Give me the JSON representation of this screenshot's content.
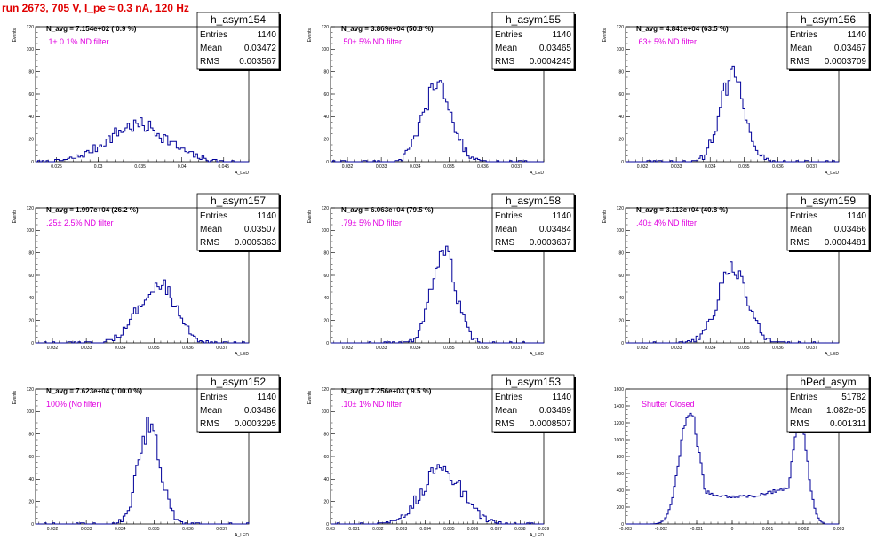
{
  "page": {
    "title": "run 2673,   705 V, I_pe ≈ 0.3 nA, 120 Hz"
  },
  "chart_data": [
    {
      "type": "bar",
      "name": "h_asym154",
      "navg": "N_avg = 7.154e+02 ( 0.9 %)",
      "filter_label": ".1± 0.1% ND filter",
      "stats": [
        [
          "Entries",
          "1140"
        ],
        [
          "Mean",
          "0.03472"
        ],
        [
          "RMS",
          "0.003567"
        ]
      ],
      "xlabel": "A_LED",
      "ylabel": "Events",
      "xlim": [
        0.0225,
        0.048
      ],
      "ylim": [
        0,
        120
      ],
      "xticks": [
        0.025,
        0.03,
        0.035,
        0.04,
        0.045
      ],
      "xtick_labels": [
        "0.025",
        "0.03",
        "0.035",
        "0.04",
        "0.045"
      ],
      "yticks": [
        0,
        20,
        40,
        60,
        80,
        100,
        120
      ],
      "ytick_labels": [
        "0",
        "20",
        "40",
        "60",
        "80",
        "100",
        "120"
      ],
      "dist": {
        "mean": 0.03472,
        "rms": 0.003567,
        "entries": 1140,
        "shape": "gauss"
      }
    },
    {
      "type": "bar",
      "name": "h_asym155",
      "navg": "N_avg = 3.869e+04 (50.8 %)",
      "filter_label": ".50± 5% ND filter",
      "stats": [
        [
          "Entries",
          "1140"
        ],
        [
          "Mean",
          "0.03465"
        ],
        [
          "RMS",
          "0.0004245"
        ]
      ],
      "xlabel": "A_LED",
      "ylabel": "Events",
      "xlim": [
        0.0315,
        0.0378
      ],
      "ylim": [
        0,
        120
      ],
      "xticks": [
        0.032,
        0.033,
        0.034,
        0.035,
        0.036,
        0.037
      ],
      "xtick_labels": [
        "0.032",
        "0.033",
        "0.034",
        "0.035",
        "0.036",
        "0.037"
      ],
      "yticks": [
        0,
        20,
        40,
        60,
        80,
        100,
        120
      ],
      "ytick_labels": [
        "0",
        "20",
        "40",
        "60",
        "80",
        "100",
        "120"
      ],
      "dist": {
        "mean": 0.03465,
        "rms": 0.0004245,
        "entries": 1140,
        "shape": "gauss"
      }
    },
    {
      "type": "bar",
      "name": "h_asym156",
      "navg": "N_avg = 4.841e+04 (63.5 %)",
      "filter_label": ".63± 5% ND filter",
      "stats": [
        [
          "Entries",
          "1140"
        ],
        [
          "Mean",
          "0.03467"
        ],
        [
          "RMS",
          "0.0003709"
        ]
      ],
      "xlabel": "A_LED",
      "ylabel": "Events",
      "xlim": [
        0.0315,
        0.0378
      ],
      "ylim": [
        0,
        120
      ],
      "xticks": [
        0.032,
        0.033,
        0.034,
        0.035,
        0.036,
        0.037
      ],
      "xtick_labels": [
        "0.032",
        "0.033",
        "0.034",
        "0.035",
        "0.036",
        "0.037"
      ],
      "yticks": [
        0,
        20,
        40,
        60,
        80,
        100,
        120
      ],
      "ytick_labels": [
        "0",
        "20",
        "40",
        "60",
        "80",
        "100",
        "120"
      ],
      "dist": {
        "mean": 0.03467,
        "rms": 0.0003709,
        "entries": 1140,
        "shape": "gauss"
      }
    },
    {
      "type": "bar",
      "name": "h_asym157",
      "navg": "N_avg = 1.997e+04 (26.2 %)",
      "filter_label": ".25± 2.5% ND filter",
      "stats": [
        [
          "Entries",
          "1140"
        ],
        [
          "Mean",
          "0.03507"
        ],
        [
          "RMS",
          "0.0005363"
        ]
      ],
      "xlabel": "A_LED",
      "ylabel": "Events",
      "xlim": [
        0.0315,
        0.0378
      ],
      "ylim": [
        0,
        120
      ],
      "xticks": [
        0.032,
        0.033,
        0.034,
        0.035,
        0.036,
        0.037
      ],
      "xtick_labels": [
        "0.032",
        "0.033",
        "0.034",
        "0.035",
        "0.036",
        "0.037"
      ],
      "yticks": [
        0,
        20,
        40,
        60,
        80,
        100,
        120
      ],
      "ytick_labels": [
        "0",
        "20",
        "40",
        "60",
        "80",
        "100",
        "120"
      ],
      "dist": {
        "mean": 0.03507,
        "rms": 0.0005363,
        "entries": 1140,
        "shape": "gauss"
      }
    },
    {
      "type": "bar",
      "name": "h_asym158",
      "navg": "N_avg = 6.063e+04 (79.5 %)",
      "filter_label": ".79± 5% ND filter",
      "stats": [
        [
          "Entries",
          "1140"
        ],
        [
          "Mean",
          "0.03484"
        ],
        [
          "RMS",
          "0.0003637"
        ]
      ],
      "xlabel": "A_LED",
      "ylabel": "Events",
      "xlim": [
        0.0315,
        0.0378
      ],
      "ylim": [
        0,
        120
      ],
      "xticks": [
        0.032,
        0.033,
        0.034,
        0.035,
        0.036,
        0.037
      ],
      "xtick_labels": [
        "0.032",
        "0.033",
        "0.034",
        "0.035",
        "0.036",
        "0.037"
      ],
      "yticks": [
        0,
        20,
        40,
        60,
        80,
        100,
        120
      ],
      "ytick_labels": [
        "0",
        "20",
        "40",
        "60",
        "80",
        "100",
        "120"
      ],
      "dist": {
        "mean": 0.03484,
        "rms": 0.0003637,
        "entries": 1140,
        "shape": "gauss"
      }
    },
    {
      "type": "bar",
      "name": "h_asym159",
      "navg": "N_avg = 3.113e+04 (40.8 %)",
      "filter_label": ".40± 4% ND filter",
      "stats": [
        [
          "Entries",
          "1140"
        ],
        [
          "Mean",
          "0.03466"
        ],
        [
          "RMS",
          "0.0004481"
        ]
      ],
      "xlabel": "A_LED",
      "ylabel": "Events",
      "xlim": [
        0.0315,
        0.0378
      ],
      "ylim": [
        0,
        120
      ],
      "xticks": [
        0.032,
        0.033,
        0.034,
        0.035,
        0.036,
        0.037
      ],
      "xtick_labels": [
        "0.032",
        "0.033",
        "0.034",
        "0.035",
        "0.036",
        "0.037"
      ],
      "yticks": [
        0,
        20,
        40,
        60,
        80,
        100,
        120
      ],
      "ytick_labels": [
        "0",
        "20",
        "40",
        "60",
        "80",
        "100",
        "120"
      ],
      "dist": {
        "mean": 0.03466,
        "rms": 0.0004481,
        "entries": 1140,
        "shape": "gauss"
      }
    },
    {
      "type": "bar",
      "name": "h_asym152",
      "navg": "N_avg = 7.623e+04 (100.0 %)",
      "filter_label": "100% (No filter)",
      "stats": [
        [
          "Entries",
          "1140"
        ],
        [
          "Mean",
          "0.03486"
        ],
        [
          "RMS",
          "0.0003295"
        ]
      ],
      "xlabel": "A_LED",
      "ylabel": "Events",
      "xlim": [
        0.0315,
        0.0378
      ],
      "ylim": [
        0,
        120
      ],
      "xticks": [
        0.032,
        0.033,
        0.034,
        0.035,
        0.036,
        0.037
      ],
      "xtick_labels": [
        "0.032",
        "0.033",
        "0.034",
        "0.035",
        "0.036",
        "0.037"
      ],
      "yticks": [
        0,
        20,
        40,
        60,
        80,
        100,
        120
      ],
      "ytick_labels": [
        "0",
        "20",
        "40",
        "60",
        "80",
        "100",
        "120"
      ],
      "dist": {
        "mean": 0.03486,
        "rms": 0.0003295,
        "entries": 1140,
        "shape": "gauss"
      }
    },
    {
      "type": "bar",
      "name": "h_asym153",
      "navg": "N_avg = 7.256e+03 ( 9.5 %)",
      "filter_label": ".10± 1% ND filter",
      "stats": [
        [
          "Entries",
          "1140"
        ],
        [
          "Mean",
          "0.03469"
        ],
        [
          "RMS",
          "0.0008507"
        ]
      ],
      "xlabel": "A_LED",
      "ylabel": "Events",
      "xlim": [
        0.03,
        0.039
      ],
      "ylim": [
        0,
        120
      ],
      "xticks": [
        0.03,
        0.031,
        0.032,
        0.033,
        0.034,
        0.035,
        0.036,
        0.037,
        0.038,
        0.039
      ],
      "xtick_labels": [
        "0.03",
        "0.031",
        "0.032",
        "0.033",
        "0.034",
        "0.035",
        "0.036",
        "0.037",
        "0.038",
        "0.039"
      ],
      "yticks": [
        0,
        20,
        40,
        60,
        80,
        100,
        120
      ],
      "ytick_labels": [
        "0",
        "20",
        "40",
        "60",
        "80",
        "100",
        "120"
      ],
      "dist": {
        "mean": 0.03469,
        "rms": 0.0008507,
        "entries": 1140,
        "shape": "gauss"
      }
    },
    {
      "type": "bar",
      "name": "hPed_asym",
      "navg": "",
      "filter_label": "Shutter Closed",
      "stats": [
        [
          "Entries",
          "51782"
        ],
        [
          "Mean",
          "1.082e-05"
        ],
        [
          "RMS",
          "0.001311"
        ]
      ],
      "xlabel": "",
      "ylabel": "",
      "xlim": [
        -0.003,
        0.003
      ],
      "ylim": [
        0,
        1600
      ],
      "xticks": [
        -0.003,
        -0.002,
        -0.001,
        0,
        0.001,
        0.002,
        0.003
      ],
      "xtick_labels": [
        "-0.003",
        "-0.002",
        "-0.001",
        "0",
        "0.001",
        "0.002",
        "0.003"
      ],
      "yticks": [
        0,
        200,
        400,
        600,
        800,
        1000,
        1200,
        1400,
        1600
      ],
      "ytick_labels": [
        "0",
        "200",
        "400",
        "600",
        "800",
        "1000",
        "1200",
        "1400",
        "1600"
      ],
      "dist": {
        "mean": 1.082e-05,
        "rms": 0.001311,
        "entries": 51782,
        "shape": "double",
        "peaks": [
          -0.0012,
          0.0019
        ],
        "peak_heights": [
          1350,
          1200
        ],
        "valley": 320
      }
    }
  ]
}
